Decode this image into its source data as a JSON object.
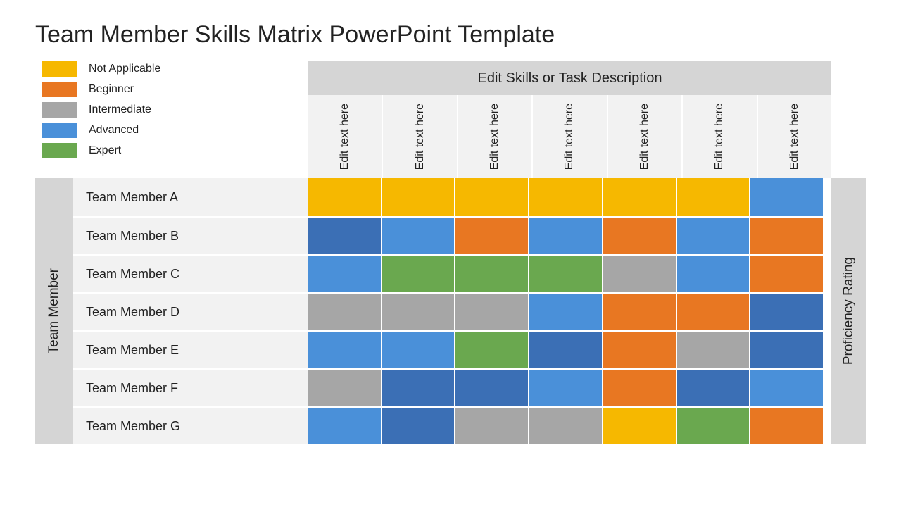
{
  "title": "Team Member Skills Matrix PowerPoint Template",
  "legend": [
    {
      "label": "Not Applicable",
      "color": "#f6b800"
    },
    {
      "label": "Beginner",
      "color": "#e87722"
    },
    {
      "label": "Intermediate",
      "color": "#a6a6a6"
    },
    {
      "label": "Advanced",
      "color": "#4a90d9"
    },
    {
      "label": "Expert",
      "color": "#6aa84f"
    }
  ],
  "skills_header": "Edit Skills or Task Description",
  "skill_columns": [
    "Edit text here",
    "Edit text here",
    "Edit text here",
    "Edit text here",
    "Edit text here",
    "Edit text here",
    "Edit text here"
  ],
  "team_label": "Team Member",
  "rating_label": "Proficiency Rating",
  "members": [
    "Team Member A",
    "Team Member B",
    "Team Member C",
    "Team Member D",
    "Team Member E",
    "Team Member F",
    "Team Member G"
  ],
  "palette": {
    "amber": "#f6b800",
    "orange": "#e87722",
    "gray": "#a6a6a6",
    "blue": "#4a90d9",
    "dblue": "#3b6fb5",
    "green": "#6aa84f"
  },
  "grid": [
    [
      "amber",
      "amber",
      "amber",
      "amber",
      "amber",
      "amber",
      "blue"
    ],
    [
      "dblue",
      "blue",
      "orange",
      "blue",
      "orange",
      "blue",
      "orange"
    ],
    [
      "blue",
      "green",
      "green",
      "green",
      "gray",
      "blue",
      "orange"
    ],
    [
      "gray",
      "gray",
      "gray",
      "blue",
      "orange",
      "orange",
      "dblue"
    ],
    [
      "blue",
      "blue",
      "green",
      "dblue",
      "orange",
      "gray",
      "dblue"
    ],
    [
      "gray",
      "dblue",
      "dblue",
      "blue",
      "orange",
      "dblue",
      "blue"
    ],
    [
      "blue",
      "dblue",
      "gray",
      "gray",
      "amber",
      "green",
      "orange"
    ]
  ],
  "style": {
    "header_bg": "#d5d5d5",
    "row_bg": "#f2f2f2",
    "gap_color": "#ffffff",
    "title_fontsize": 34,
    "label_fontsize": 18
  }
}
